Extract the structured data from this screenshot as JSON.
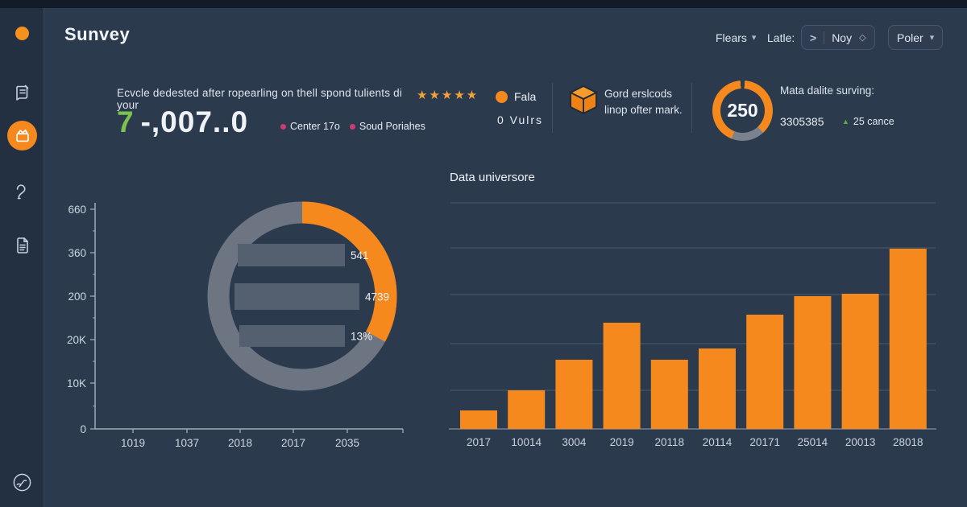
{
  "colors": {
    "accent": "#f5891d",
    "positive_green": "#7cc24e",
    "legend_pink": "#c93d74",
    "ring_gray": "#6e7582"
  },
  "app": {
    "title": "Sunvey"
  },
  "topbar": {
    "filter_dropdown": "Flears",
    "date_label": "Latle:",
    "nav_arrow": ">",
    "month_value": "Noy",
    "period_dropdown": "Poler"
  },
  "sidebar": {
    "icons": [
      "status-dot",
      "memo-icon",
      "chart-box-icon",
      "hook-icon",
      "file-icon",
      "globe-icon"
    ]
  },
  "stats": {
    "survey": {
      "headline": "Ecvcle dedested after ropearling on thell spond tulients di your",
      "stars": "★★★★★",
      "value_highlight": "7",
      "value_rest": "-,007..0",
      "legend": [
        {
          "label": "Center 17o"
        },
        {
          "label": "Soud Poriahes"
        }
      ]
    },
    "fala": {
      "label": "Fala",
      "value": "0  Vulrs"
    },
    "orders": {
      "line1": "Gord erslcods",
      "line2": "linop ofter mark."
    },
    "gauge": {
      "value": "250",
      "title": "Mata dalite surving:",
      "metric": "3305385",
      "delta": "25 cance"
    }
  },
  "chart_data": [
    {
      "type": "donut",
      "title": "",
      "y_ticks": [
        "660",
        "360",
        "200",
        "20K",
        "10K",
        "0"
      ],
      "x_ticks": [
        "1019",
        "1037",
        "2018",
        "2017",
        "2035"
      ],
      "ring": {
        "value_fraction": 0.33,
        "arc_color": "#f5891d",
        "ring_color": "#6e7582"
      },
      "inner_bars": [
        {
          "label": "541",
          "length": 133
        },
        {
          "label": "4739",
          "length": 155
        },
        {
          "label": "13%",
          "length": 131
        }
      ]
    },
    {
      "type": "bar",
      "title": "Data universore",
      "categories": [
        "2017",
        "10014",
        "3004",
        "2019",
        "20118",
        "20114",
        "20171",
        "25014",
        "20013",
        "28018"
      ],
      "values": [
        23,
        48,
        86,
        132,
        86,
        100,
        142,
        165,
        168,
        224
      ],
      "ylim": [
        0,
        281
      ],
      "bar_color": "#f5891d",
      "grid": true,
      "xlabel": "",
      "ylabel": ""
    }
  ]
}
